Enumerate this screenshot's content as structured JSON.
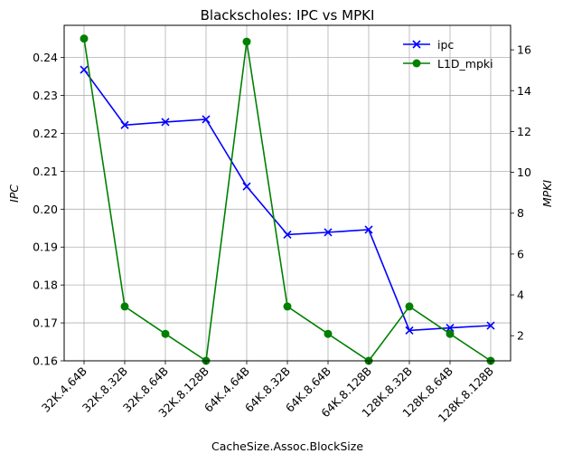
{
  "chart_data": {
    "type": "line",
    "title": "Blackscholes: IPC vs MPKI",
    "xlabel": "CacheSize.Assoc.BlockSize",
    "ylabel_left": "IPC",
    "ylabel_right": "MPKI",
    "categories": [
      "32K.4.64B",
      "32K.8.32B",
      "32K.8.64B",
      "32K.8.128B",
      "64K.4.64B",
      "64K.8.32B",
      "64K.8.64B",
      "64K.8.128B",
      "128K.8.32B",
      "128K.8.64B",
      "128K.8.128B"
    ],
    "ylim_left": [
      0.16,
      0.2485
    ],
    "ylim_right": [
      0.77,
      17.2
    ],
    "yticks_left": [
      "0.16",
      "0.17",
      "0.18",
      "0.19",
      "0.20",
      "0.21",
      "0.22",
      "0.23",
      "0.24"
    ],
    "yticks_right": [
      "2",
      "4",
      "6",
      "8",
      "10",
      "12",
      "14",
      "16"
    ],
    "grid": true,
    "legend_position": "top-right",
    "series": [
      {
        "name": "ipc",
        "axis": "left",
        "color": "#0000ff",
        "marker": "x",
        "values": [
          0.2368,
          0.2222,
          0.223,
          0.2237,
          0.206,
          0.1933,
          0.1939,
          0.1946,
          0.168,
          0.1687,
          0.1693
        ]
      },
      {
        "name": "L1D_mpki",
        "axis": "right",
        "color": "#008000",
        "marker": "o",
        "values": [
          16.55,
          3.43,
          2.09,
          0.77,
          16.4,
          3.43,
          2.09,
          0.77,
          3.43,
          2.09,
          0.77
        ]
      }
    ]
  }
}
